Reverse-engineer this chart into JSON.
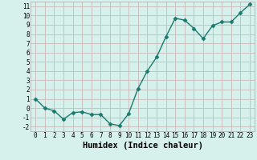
{
  "x": [
    0,
    1,
    2,
    3,
    4,
    5,
    6,
    7,
    8,
    9,
    10,
    11,
    12,
    13,
    14,
    15,
    16,
    17,
    18,
    19,
    20,
    21,
    22,
    23
  ],
  "y": [
    1.0,
    0.0,
    -0.3,
    -1.2,
    -0.5,
    -0.4,
    -0.7,
    -0.7,
    -1.7,
    -1.9,
    -0.6,
    2.1,
    4.0,
    5.5,
    7.7,
    9.7,
    9.5,
    8.6,
    7.5,
    8.9,
    9.3,
    9.3,
    10.3,
    11.2
  ],
  "line_color": "#1a7a6e",
  "marker_color": "#1a7a6e",
  "bg_color": "#d6f0ec",
  "grid_color": "#c8b8b8",
  "xlabel": "Humidex (Indice chaleur)",
  "xlim": [
    -0.5,
    23.5
  ],
  "ylim": [
    -2.5,
    11.5
  ],
  "yticks": [
    -2,
    -1,
    0,
    1,
    2,
    3,
    4,
    5,
    6,
    7,
    8,
    9,
    10,
    11
  ],
  "xticks": [
    0,
    1,
    2,
    3,
    4,
    5,
    6,
    7,
    8,
    9,
    10,
    11,
    12,
    13,
    14,
    15,
    16,
    17,
    18,
    19,
    20,
    21,
    22,
    23
  ],
  "tick_fontsize": 5.5,
  "xlabel_fontsize": 7.5,
  "marker_size": 2.5,
  "line_width": 1.0
}
